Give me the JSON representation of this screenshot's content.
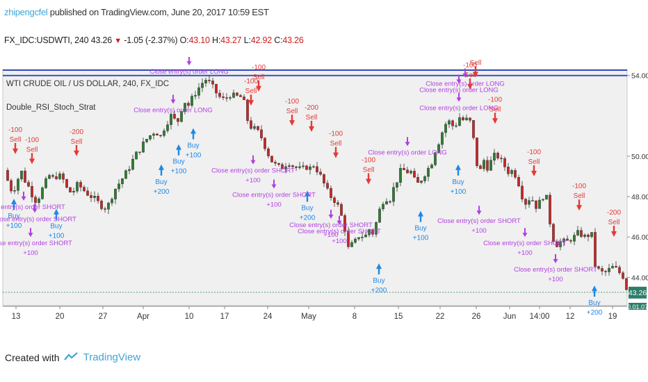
{
  "header": {
    "author": "zhipengcfel",
    "published_text": " published on TradingView.com, June 20, 2017 10:59 EST",
    "ohlc": {
      "symbol": "FX_IDC:USDWTI, 240",
      "last": "43.26",
      "change": "-1.05",
      "change_pct": "(-2.37%)",
      "o_label": "O:",
      "o": "43.10",
      "h_label": "H:",
      "h": "43.27",
      "l_label": "L:",
      "l": "42.92",
      "c_label": "C:",
      "c": "43.26"
    }
  },
  "legend": {
    "title": "WTI CRUDE OIL / US DOLLAR, 240, FX_IDC",
    "strategy": "Double_RSI_Stoch_Strat"
  },
  "footer": {
    "created_with": "Created with",
    "brand": "TradingView"
  },
  "colors": {
    "up": "#2e7d32",
    "down": "#c62828",
    "buy": "#1e88e5",
    "sell": "#e53935",
    "close": "#b13fe0",
    "blue_line": "#3b4fb8",
    "last_price_tag": "#2e7d6a",
    "plot_bg": "#f0f0f0"
  },
  "chart_data": {
    "type": "candlestick",
    "ylim": [
      42.6,
      54.3
    ],
    "price_ticks": [
      "54.00",
      "50.00",
      "48.00",
      "46.00",
      "44.00"
    ],
    "price_tick_values": [
      54,
      50,
      48,
      46,
      44
    ],
    "last_price_label": "43.26",
    "partial_tag_label": "0.01.07",
    "x_tick_labels": [
      "13",
      "20",
      "27",
      "Apr",
      "10",
      "17",
      "24",
      "May",
      "8",
      "15",
      "22",
      "26",
      "Jun",
      "14:00",
      "12",
      "19"
    ],
    "blue_line_value": 54.0,
    "dotted_line_value": 43.26,
    "close_path": [
      [
        0,
        49.3
      ],
      [
        6,
        48.7
      ],
      [
        12,
        48.2
      ],
      [
        18,
        48.7
      ],
      [
        24,
        49.3
      ],
      [
        30,
        48.8
      ],
      [
        38,
        48.3
      ],
      [
        44,
        47.8
      ],
      [
        50,
        48.0
      ],
      [
        58,
        48.6
      ],
      [
        66,
        49.1
      ],
      [
        72,
        48.8
      ],
      [
        76,
        49.1
      ],
      [
        84,
        48.9
      ],
      [
        90,
        48.4
      ],
      [
        96,
        48.2
      ],
      [
        100,
        48.3
      ],
      [
        106,
        48.6
      ],
      [
        112,
        48.4
      ],
      [
        118,
        48.2
      ],
      [
        126,
        48.0
      ],
      [
        132,
        47.8
      ],
      [
        138,
        47.6
      ],
      [
        144,
        47.5
      ],
      [
        148,
        47.4
      ],
      [
        152,
        47.8
      ],
      [
        158,
        48.3
      ],
      [
        164,
        48.6
      ],
      [
        170,
        48.9
      ],
      [
        176,
        49.2
      ],
      [
        182,
        49.6
      ],
      [
        188,
        50.0
      ],
      [
        194,
        50.3
      ],
      [
        200,
        50.6
      ],
      [
        206,
        50.9
      ],
      [
        212,
        51.1
      ],
      [
        218,
        51.3
      ],
      [
        224,
        50.9
      ],
      [
        230,
        51.4
      ],
      [
        236,
        51.8
      ],
      [
        242,
        52.1
      ],
      [
        248,
        51.5
      ],
      [
        254,
        52.3
      ],
      [
        260,
        52.7
      ],
      [
        266,
        52.5
      ],
      [
        272,
        53.0
      ],
      [
        278,
        53.3
      ],
      [
        284,
        53.6
      ],
      [
        290,
        53.8
      ],
      [
        296,
        53.6
      ],
      [
        302,
        53.3
      ],
      [
        308,
        53.0
      ],
      [
        314,
        52.8
      ],
      [
        320,
        52.9
      ],
      [
        326,
        53.1
      ],
      [
        332,
        52.9
      ],
      [
        338,
        53.0
      ],
      [
        344,
        52.8
      ],
      [
        350,
        51.8
      ],
      [
        356,
        51.4
      ],
      [
        362,
        51.3
      ],
      [
        368,
        51.1
      ],
      [
        374,
        50.6
      ],
      [
        380,
        50.1
      ],
      [
        386,
        49.7
      ],
      [
        392,
        49.5
      ],
      [
        398,
        49.4
      ],
      [
        404,
        49.6
      ],
      [
        410,
        49.7
      ],
      [
        416,
        49.5
      ],
      [
        422,
        49.4
      ],
      [
        428,
        49.3
      ],
      [
        434,
        49.5
      ],
      [
        440,
        49.4
      ],
      [
        446,
        49.6
      ],
      [
        452,
        49.2
      ],
      [
        458,
        48.8
      ],
      [
        464,
        48.3
      ],
      [
        470,
        48.0
      ],
      [
        476,
        47.8
      ],
      [
        482,
        47.4
      ],
      [
        486,
        46.9
      ],
      [
        490,
        46.4
      ],
      [
        494,
        45.7
      ],
      [
        498,
        44.6
      ],
      [
        500,
        45.6
      ],
      [
        506,
        45.8
      ],
      [
        512,
        46.2
      ],
      [
        518,
        45.9
      ],
      [
        524,
        46.4
      ],
      [
        530,
        46.2
      ],
      [
        536,
        46.8
      ],
      [
        542,
        47.6
      ],
      [
        548,
        48.0
      ],
      [
        554,
        47.8
      ],
      [
        560,
        48.4
      ],
      [
        566,
        48.9
      ],
      [
        572,
        49.4
      ],
      [
        578,
        49.2
      ],
      [
        584,
        49.3
      ],
      [
        590,
        48.8
      ],
      [
        596,
        48.6
      ],
      [
        602,
        49.0
      ],
      [
        608,
        49.3
      ],
      [
        614,
        49.6
      ],
      [
        620,
        50.3
      ],
      [
        626,
        50.8
      ],
      [
        632,
        51.4
      ],
      [
        638,
        51.8
      ],
      [
        644,
        51.5
      ],
      [
        650,
        51.6
      ],
      [
        656,
        52.0
      ],
      [
        662,
        51.7
      ],
      [
        668,
        51.9
      ],
      [
        672,
        51.5
      ],
      [
        676,
        50.6
      ],
      [
        680,
        49.6
      ],
      [
        684,
        49.2
      ],
      [
        690,
        49.8
      ],
      [
        696,
        49.4
      ],
      [
        702,
        49.9
      ],
      [
        708,
        50.1
      ],
      [
        714,
        49.8
      ],
      [
        720,
        49.5
      ],
      [
        726,
        49.2
      ],
      [
        732,
        49.3
      ],
      [
        738,
        48.9
      ],
      [
        744,
        48.2
      ],
      [
        748,
        47.6
      ],
      [
        752,
        47.8
      ],
      [
        758,
        48.0
      ],
      [
        764,
        47.5
      ],
      [
        770,
        47.7
      ],
      [
        776,
        48.1
      ],
      [
        780,
        47.9
      ],
      [
        786,
        46.5
      ],
      [
        790,
        45.9
      ],
      [
        796,
        45.6
      ],
      [
        802,
        45.8
      ],
      [
        808,
        45.7
      ],
      [
        814,
        45.9
      ],
      [
        820,
        46.0
      ],
      [
        826,
        46.2
      ],
      [
        832,
        46.1
      ],
      [
        838,
        45.9
      ],
      [
        842,
        46.3
      ],
      [
        846,
        46.0
      ],
      [
        850,
        44.6
      ],
      [
        856,
        44.3
      ],
      [
        862,
        44.2
      ],
      [
        868,
        44.3
      ],
      [
        874,
        44.5
      ],
      [
        880,
        44.4
      ],
      [
        886,
        44.2
      ],
      [
        892,
        44.0
      ],
      [
        896,
        43.3
      ]
    ],
    "signals": [
      {
        "kind": "sell",
        "x": 16,
        "price": 49.9,
        "lines": [
          "-100",
          "Sell"
        ]
      },
      {
        "kind": "sell",
        "x": 40,
        "price": 49.4,
        "lines": [
          "-100",
          "Sell"
        ]
      },
      {
        "kind": "sell",
        "x": 104,
        "price": 49.8,
        "lines": [
          "-200",
          "Sell"
        ]
      },
      {
        "kind": "sell",
        "x": 355,
        "price": 52.3,
        "lines": [
          "-100",
          "Sell"
        ]
      },
      {
        "kind": "sell",
        "x": 366,
        "price": 53.0,
        "lines": [
          "-100",
          "Sell"
        ]
      },
      {
        "kind": "sell",
        "x": 414,
        "price": 51.3,
        "lines": [
          "-100",
          "Sell"
        ]
      },
      {
        "kind": "sell",
        "x": 442,
        "price": 51.0,
        "lines": [
          "-200",
          "Sell"
        ]
      },
      {
        "kind": "sell",
        "x": 477,
        "price": 49.7,
        "lines": [
          "-100",
          "Sell"
        ]
      },
      {
        "kind": "sell",
        "x": 524,
        "price": 48.4,
        "lines": [
          "-100",
          "Sell"
        ]
      },
      {
        "kind": "sell",
        "x": 670,
        "price": 53.1,
        "lines": [
          "-100",
          "Sell"
        ]
      },
      {
        "kind": "sell",
        "x": 678,
        "price": 53.7,
        "lines": [
          "-100",
          "Sell"
        ]
      },
      {
        "kind": "sell",
        "x": 706,
        "price": 51.4,
        "lines": [
          "-100",
          "Sell"
        ]
      },
      {
        "kind": "sell",
        "x": 762,
        "price": 48.8,
        "lines": [
          "-100",
          "Sell"
        ]
      },
      {
        "kind": "sell",
        "x": 827,
        "price": 47.1,
        "lines": [
          "-100",
          "Sell"
        ]
      },
      {
        "kind": "sell",
        "x": 877,
        "price": 45.8,
        "lines": [
          "-200",
          "Sell"
        ]
      },
      {
        "kind": "buy",
        "x": 14,
        "price": 48.1,
        "lines": [
          "Buy",
          "+100"
        ]
      },
      {
        "kind": "buy",
        "x": 75,
        "price": 47.6,
        "lines": [
          "Buy",
          "+100"
        ]
      },
      {
        "kind": "buy",
        "x": 226,
        "price": 49.8,
        "lines": [
          "Buy",
          "+200"
        ]
      },
      {
        "kind": "buy",
        "x": 251,
        "price": 50.8,
        "lines": [
          "Buy",
          "+100"
        ]
      },
      {
        "kind": "buy",
        "x": 272,
        "price": 51.6,
        "lines": [
          "Buy",
          "+100"
        ]
      },
      {
        "kind": "buy",
        "x": 436,
        "price": 48.5,
        "lines": [
          "Buy",
          "+200"
        ]
      },
      {
        "kind": "buy",
        "x": 539,
        "price": 44.9,
        "lines": [
          "Buy",
          "+200"
        ]
      },
      {
        "kind": "buy",
        "x": 599,
        "price": 47.5,
        "lines": [
          "Buy",
          "+100"
        ]
      },
      {
        "kind": "buy",
        "x": 653,
        "price": 49.8,
        "lines": [
          "Buy",
          "+100"
        ]
      },
      {
        "kind": "buy",
        "x": 849,
        "price": 43.8,
        "lines": [
          "Buy",
          "+200"
        ]
      },
      {
        "kind": "close",
        "x": 28,
        "price": 47.8,
        "lines": [
          "Close entry(s) order SHORT"
        ]
      },
      {
        "kind": "close",
        "x": 44,
        "price": 47.2,
        "lines": [
          "Close entry(s) order SHORT"
        ]
      },
      {
        "kind": "close",
        "x": 38,
        "price": 46.0,
        "lines": [
          "Close entry(s) order SHORT",
          "+100"
        ]
      },
      {
        "kind": "close",
        "x": 266,
        "price": 54.5,
        "lines": [
          "Close entry(s) order LONG"
        ]
      },
      {
        "kind": "close",
        "x": 243,
        "price": 52.6,
        "lines": [
          "Close entry(s) order LONG"
        ]
      },
      {
        "kind": "close",
        "x": 358,
        "price": 49.6,
        "lines": [
          "Close entry(s) order SHORT",
          "+100"
        ]
      },
      {
        "kind": "close",
        "x": 388,
        "price": 48.4,
        "lines": [
          "Close entry(s) order SHORT",
          "+100"
        ]
      },
      {
        "kind": "close",
        "x": 470,
        "price": 46.9,
        "lines": [
          "Close entry(s) order SHORT",
          "+100"
        ]
      },
      {
        "kind": "close",
        "x": 482,
        "price": 46.6,
        "lines": [
          "Close entry(s) order SHORT",
          "+100"
        ]
      },
      {
        "kind": "close",
        "x": 580,
        "price": 50.5,
        "lines": [
          "Close entry(s) order LONG"
        ]
      },
      {
        "kind": "close",
        "x": 654,
        "price": 53.6,
        "lines": [
          "Close entry(s) order LONG"
        ]
      },
      {
        "kind": "close",
        "x": 663,
        "price": 53.9,
        "lines": [
          "Close entry(s) order LONG"
        ]
      },
      {
        "kind": "close",
        "x": 654,
        "price": 52.7,
        "lines": [
          "Close entry(s) order LONG"
        ]
      },
      {
        "kind": "close",
        "x": 683,
        "price": 47.1,
        "lines": [
          "Close entry(s) order SHORT",
          "+100"
        ]
      },
      {
        "kind": "close",
        "x": 749,
        "price": 46.0,
        "lines": [
          "Close entry(s) order SHORT",
          "+100"
        ]
      },
      {
        "kind": "close",
        "x": 793,
        "price": 44.7,
        "lines": [
          "Close entry(s) order SHORT",
          "+100"
        ]
      }
    ]
  }
}
